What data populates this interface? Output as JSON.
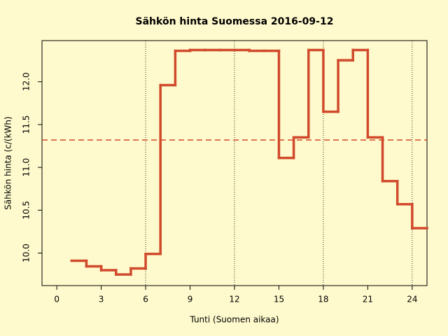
{
  "chart_data": {
    "type": "step",
    "title": "Sähkön hinta Suomessa 2016-09-12",
    "x_label": "Tunti (Suomen aikaa)",
    "y_label": "Sähkön hinta (c/(kWh)",
    "x": [
      1,
      2,
      3,
      4,
      5,
      6,
      7,
      8,
      9,
      10,
      11,
      12,
      13,
      14,
      15,
      16,
      17,
      18,
      19,
      20,
      21,
      22,
      23,
      24
    ],
    "series": [
      {
        "color": "#d04a2c",
        "values": [
          9.91,
          9.845,
          9.8,
          9.75,
          9.82,
          9.99,
          11.96,
          12.36,
          12.37,
          12.37,
          12.37,
          12.37,
          12.36,
          12.36,
          11.11,
          11.35,
          12.37,
          11.65,
          12.25,
          12.37,
          11.35,
          10.84,
          10.57,
          10.29
        ]
      }
    ],
    "mean_line": 11.32,
    "vlines": [
      6,
      12,
      18,
      24
    ],
    "xlim": [
      -1,
      25
    ],
    "ylim": [
      9.62,
      12.48
    ],
    "xticks": [
      0,
      3,
      6,
      9,
      12,
      15,
      18,
      21,
      24
    ],
    "yticks": [
      {
        "value": 10,
        "label": "10.0"
      },
      {
        "value": 10.5,
        "label": "10.5"
      },
      {
        "value": 11,
        "label": "11.0"
      },
      {
        "value": 11.5,
        "label": "11.5"
      },
      {
        "value": 12,
        "label": "12.0"
      }
    ]
  }
}
